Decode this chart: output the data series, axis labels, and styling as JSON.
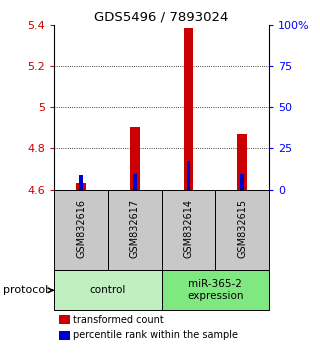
{
  "title": "GDS5496 / 7893024",
  "samples": [
    "GSM832616",
    "GSM832617",
    "GSM832614",
    "GSM832615"
  ],
  "red_tops": [
    4.634,
    4.905,
    5.385,
    4.87
  ],
  "blue_tops": [
    4.67,
    4.678,
    4.74,
    4.678
  ],
  "bar_base": 4.6,
  "ylim_left": [
    4.6,
    5.4
  ],
  "ylim_right": [
    0,
    100
  ],
  "yticks_left": [
    4.6,
    4.8,
    5.0,
    5.2,
    5.4
  ],
  "ytick_labels_left": [
    "4.6",
    "4.8",
    "5",
    "5.2",
    "5.4"
  ],
  "yticks_right": [
    0,
    25,
    50,
    75,
    100
  ],
  "ytick_labels_right": [
    "0",
    "25",
    "50",
    "75",
    "100%"
  ],
  "grid_values": [
    4.8,
    5.0,
    5.2
  ],
  "groups": [
    {
      "label": "control",
      "samples": [
        0,
        1
      ],
      "color": "#c0f0c0"
    },
    {
      "label": "miR-365-2\nexpression",
      "samples": [
        2,
        3
      ],
      "color": "#80e880"
    }
  ],
  "red_color": "#cc0000",
  "blue_color": "#0000cc",
  "red_bar_width": 0.18,
  "blue_bar_width": 0.07,
  "sample_label_bg": "#c8c8c8",
  "protocol_label": "protocol",
  "legend_red": "transformed count",
  "legend_blue": "percentile rank within the sample"
}
